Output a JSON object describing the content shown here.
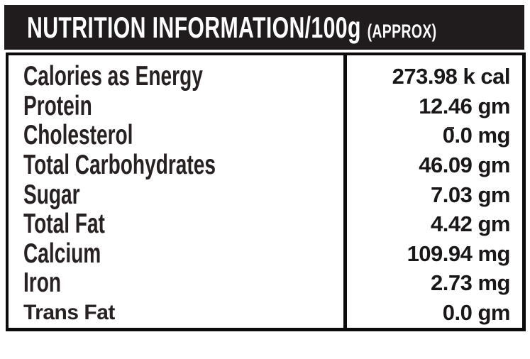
{
  "header": {
    "title": "NUTRITION INFORMATION/100g",
    "title_note": "(APPROX)"
  },
  "table": {
    "rows": [
      {
        "label": "Calories as Energy",
        "value": "273.98 k cal"
      },
      {
        "label": "Protein",
        "value": "12.46 gm"
      },
      {
        "label": "Cholesterol",
        "value": "0.0 mg"
      },
      {
        "label": "Total Carbohydrates",
        "value": "46.09 gm"
      },
      {
        "label": "Sugar",
        "value": "7.03 gm"
      },
      {
        "label": "Total Fat",
        "value": "4.42 gm"
      },
      {
        "label": "Calcium",
        "value": "109.94 mg"
      },
      {
        "label": "Iron",
        "value": "2.73 mg"
      },
      {
        "label": "Trans Fat",
        "value": "0.0 gm"
      }
    ]
  },
  "colors": {
    "header_bg": "#201b1c",
    "header_text": "#ffffff",
    "label_text": "#272122",
    "value_text": "#1a1718",
    "border": "#0d0b0b",
    "page_bg": "#ffffff"
  }
}
